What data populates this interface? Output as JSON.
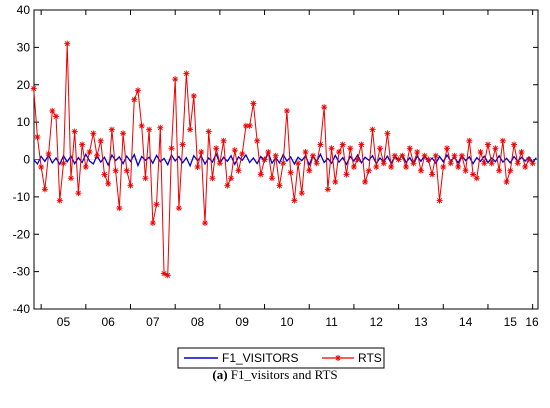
{
  "chart_data": {
    "type": "line",
    "title": "",
    "xlabel": "",
    "ylabel": "",
    "x_tick_labels": [
      "05",
      "06",
      "07",
      "08",
      "09",
      "10",
      "11",
      "12",
      "13",
      "14",
      "15",
      "16"
    ],
    "y_ticks": [
      40,
      30,
      20,
      10,
      0,
      -10,
      -20,
      -30,
      -40
    ],
    "ylim": [
      -40,
      40
    ],
    "x_range_years": [
      2004.84,
      2016.12
    ],
    "start_date": "2004-11",
    "frequency": "monthly",
    "grid": false,
    "legend_position": "bottom-center",
    "series": [
      {
        "name": "F1_VISITORS",
        "color": "#0000cc",
        "marker": "none",
        "values": [
          0.0,
          -1.2,
          0.8,
          -0.5,
          1.1,
          -0.9,
          0.4,
          -1.3,
          1.0,
          -0.6,
          0.9,
          -1.1,
          0.5,
          -0.8,
          1.4,
          -0.4,
          -1.2,
          1.0,
          -0.7,
          0.6,
          -1.5,
          1.2,
          -0.3,
          0.7,
          -1.1,
          0.9,
          -0.5,
          1.3,
          -1.6,
          0.8,
          -0.2,
          0.6,
          -1.0,
          1.1,
          -0.6,
          0.3,
          -1.4,
          1.2,
          -0.4,
          0.8,
          -0.9,
          0.5,
          -1.7,
          1.0,
          -0.3,
          0.9,
          -1.2,
          0.4,
          -0.7,
          1.5,
          -1.0,
          0.6,
          -0.5,
          1.0,
          -1.3,
          0.7,
          -0.2,
          1.2,
          -0.8,
          0.4,
          -1.1,
          0.8,
          -0.6,
          1.8,
          -1.0,
          0.5,
          -0.9,
          1.3,
          -0.4,
          0.7,
          -1.2,
          0.6,
          -0.3,
          1.0,
          -1.4,
          0.9,
          -0.5,
          1.4,
          -0.8,
          0.3,
          -1.0,
          1.1,
          -0.7,
          0.5,
          -1.3,
          0.8,
          -0.4,
          1.2,
          -0.9,
          0.6,
          -0.2,
          1.0,
          -1.1,
          0.4,
          -0.6,
          0.9,
          -1.0,
          0.7,
          -0.3,
          1.3,
          -0.8,
          0.5,
          -1.2,
          0.9,
          -0.5,
          1.1,
          -0.7,
          0.4,
          -1.0,
          0.8,
          -0.6,
          1.2,
          -0.4,
          0.6,
          -0.9,
          1.0,
          -0.3,
          0.7,
          -1.1,
          0.5,
          -0.5,
          0.9,
          -0.8,
          0.4,
          -0.6,
          1.0,
          -0.7,
          0.3,
          -0.9,
          0.8,
          -0.5,
          0.6,
          -0.4,
          0.7,
          -0.8,
          0.5
        ]
      },
      {
        "name": "RTS",
        "color": "#ee0000",
        "marker": "asterisk",
        "values": [
          19.0,
          6.0,
          -2.0,
          -8.0,
          1.5,
          13.0,
          11.5,
          -11.0,
          -1.0,
          31.0,
          -5.0,
          7.5,
          -9.0,
          4.0,
          -2.0,
          2.0,
          7.0,
          1.0,
          5.0,
          -4.0,
          -6.5,
          8.0,
          -3.0,
          -13.0,
          7.0,
          -3.0,
          -7.0,
          16.0,
          18.5,
          9.0,
          -5.0,
          8.0,
          -17.0,
          -12.0,
          8.5,
          -30.5,
          -31.0,
          3.0,
          21.5,
          -13.0,
          4.0,
          23.0,
          8.0,
          17.0,
          -2.0,
          2.0,
          -17.0,
          7.5,
          -5.0,
          3.0,
          -1.0,
          5.0,
          -7.0,
          -5.0,
          2.5,
          -3.0,
          1.5,
          9.0,
          9.0,
          15.0,
          5.0,
          -4.0,
          0.0,
          2.0,
          -5.0,
          1.0,
          -7.0,
          -1.0,
          13.0,
          -3.5,
          -11.0,
          -1.0,
          -9.0,
          2.0,
          -3.0,
          1.0,
          -1.0,
          4.0,
          14.0,
          -8.0,
          3.0,
          -6.0,
          2.0,
          4.0,
          -4.0,
          3.0,
          -2.0,
          0.0,
          4.0,
          -6.0,
          -3.0,
          8.0,
          -2.0,
          3.0,
          -1.0,
          7.0,
          -2.0,
          1.0,
          0.0,
          1.0,
          -2.0,
          3.0,
          -1.0,
          2.0,
          -3.0,
          1.0,
          0.0,
          -4.0,
          1.0,
          -11.0,
          -2.0,
          3.0,
          -1.0,
          1.0,
          -2.0,
          1.0,
          -3.0,
          5.0,
          -4.0,
          -5.0,
          2.0,
          -1.0,
          4.0,
          -1.0,
          3.0,
          -3.0,
          5.0,
          -6.0,
          -3.0,
          4.0,
          -1.0,
          2.0,
          -2.0,
          0.0,
          -1.0
        ]
      }
    ]
  },
  "legend": {
    "items": [
      "F1_VISITORS",
      "RTS"
    ]
  },
  "caption": {
    "label": "(a)",
    "text": " F1_visitors and RTS"
  }
}
